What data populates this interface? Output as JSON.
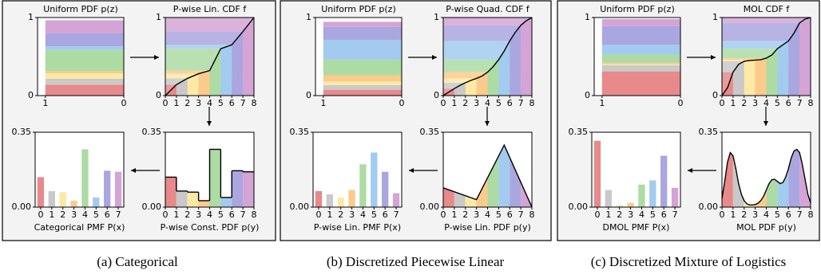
{
  "chart_data": [
    {
      "type": "band",
      "title": "Uniform PDF p(z)",
      "values": [
        0.14,
        0.075,
        0.07,
        0.03,
        0.27,
        0.045,
        0.17,
        0.165
      ],
      "colors": [
        "#e8898b",
        "#c9c9c9",
        "#fde9a6",
        "#fbcb8c",
        "#addba4",
        "#a2cbef",
        "#aaa6df",
        "#d4a4d6"
      ],
      "xlim": [
        1.1,
        0
      ],
      "xticks": [
        1,
        0
      ],
      "ylim": [
        0,
        1
      ],
      "yticks": [
        0,
        1
      ]
    },
    {
      "type": "line",
      "title": "P-wise Lin. CDF f",
      "x": [
        0,
        1,
        2,
        3,
        4,
        5,
        6,
        7,
        8
      ],
      "y": [
        0,
        0.14,
        0.22,
        0.28,
        0.32,
        0.6,
        0.65,
        0.82,
        1.0
      ],
      "color": "#000000",
      "bands": true,
      "colors": [
        "#e8898b",
        "#c9c9c9",
        "#fde9a6",
        "#fbcb8c",
        "#addba4",
        "#a2cbef",
        "#aaa6df",
        "#d4a4d6"
      ],
      "xlim": [
        0,
        8
      ],
      "xticks": [
        0,
        1,
        2,
        3,
        4,
        5,
        6,
        7,
        8
      ],
      "ylim": [
        0,
        1
      ],
      "yticks": [
        0,
        1
      ]
    },
    {
      "type": "bar",
      "xlabel": "Categorical PMF P(x)",
      "x": [
        0,
        1,
        2,
        3,
        4,
        5,
        6,
        7
      ],
      "values": [
        0.14,
        0.075,
        0.07,
        0.03,
        0.27,
        0.045,
        0.17,
        0.165
      ],
      "colors": [
        "#e8898b",
        "#c9c9c9",
        "#fde9a6",
        "#fbcb8c",
        "#addba4",
        "#a2cbef",
        "#aaa6df",
        "#d4a4d6"
      ],
      "xlim": [
        -0.5,
        7.5
      ],
      "xticks": [
        0,
        1,
        2,
        3,
        4,
        5,
        6,
        7
      ],
      "ylim": [
        0,
        0.35
      ],
      "yticks": [
        {
          "value": 0,
          "label": "0.00"
        },
        0.35
      ]
    },
    {
      "type": "step",
      "xlabel": "P-wise Const. PDF p(y)",
      "values": [
        0.14,
        0.075,
        0.07,
        0.03,
        0.27,
        0.045,
        0.17,
        0.165
      ],
      "color": "#000000",
      "colors": [
        "#e8898b",
        "#c9c9c9",
        "#fde9a6",
        "#fbcb8c",
        "#addba4",
        "#a2cbef",
        "#aaa6df",
        "#d4a4d6"
      ],
      "xlim": [
        0,
        8
      ],
      "xticks": [
        0,
        1,
        2,
        3,
        4,
        5,
        6,
        7,
        8
      ],
      "ylim": [
        0,
        0.35
      ],
      "yticks": [
        {
          "value": 0,
          "label": "0.00"
        },
        0.35
      ]
    },
    {
      "type": "band",
      "title": "Uniform PDF p(z)",
      "values": [
        0.075,
        0.06,
        0.045,
        0.08,
        0.2,
        0.255,
        0.165,
        0.065
      ],
      "colors": [
        "#e8898b",
        "#c9c9c9",
        "#fde9a6",
        "#fbcb8c",
        "#addba4",
        "#a2cbef",
        "#aaa6df",
        "#d4a4d6"
      ],
      "xlim": [
        1.1,
        0
      ],
      "xticks": [
        1,
        0
      ],
      "ylim": [
        0,
        1
      ],
      "yticks": [
        0,
        1
      ]
    },
    {
      "type": "line",
      "title": "P-wise Quad. CDF f",
      "x": [
        0,
        0.5,
        1,
        1.5,
        2,
        2.5,
        3,
        3.5,
        4,
        4.5,
        5,
        5.5,
        6,
        6.5,
        7,
        7.5,
        8
      ],
      "y": [
        0,
        0.045,
        0.09,
        0.13,
        0.165,
        0.195,
        0.22,
        0.25,
        0.3,
        0.37,
        0.46,
        0.57,
        0.7,
        0.81,
        0.9,
        0.96,
        1.0
      ],
      "color": "#000000",
      "bands": true,
      "colors": [
        "#e8898b",
        "#c9c9c9",
        "#fde9a6",
        "#fbcb8c",
        "#addba4",
        "#a2cbef",
        "#aaa6df",
        "#d4a4d6"
      ],
      "xlim": [
        0,
        8
      ],
      "xticks": [
        0,
        1,
        2,
        3,
        4,
        5,
        6,
        7,
        8
      ],
      "ylim": [
        0,
        1
      ],
      "yticks": [
        0,
        1
      ]
    },
    {
      "type": "bar",
      "xlabel": "P-wise Lin. PMF P(x)",
      "x": [
        0,
        1,
        2,
        3,
        4,
        5,
        6,
        7
      ],
      "values": [
        0.075,
        0.06,
        0.045,
        0.08,
        0.2,
        0.255,
        0.165,
        0.065
      ],
      "colors": [
        "#e8898b",
        "#c9c9c9",
        "#fde9a6",
        "#fbcb8c",
        "#addba4",
        "#a2cbef",
        "#aaa6df",
        "#d4a4d6"
      ],
      "xlim": [
        -0.5,
        7.5
      ],
      "xticks": [
        0,
        1,
        2,
        3,
        4,
        5,
        6,
        7
      ],
      "ylim": [
        0,
        0.35
      ],
      "yticks": [
        {
          "value": 0,
          "label": "0.00"
        },
        0.35
      ]
    },
    {
      "type": "line",
      "xlabel": "P-wise Lin. PDF p(y)",
      "x": [
        0,
        3,
        5.5,
        8
      ],
      "y": [
        0.09,
        0.035,
        0.29,
        0
      ],
      "color": "#000000",
      "bands": false,
      "colors": [
        "#e8898b",
        "#c9c9c9",
        "#fde9a6",
        "#fbcb8c",
        "#addba4",
        "#a2cbef",
        "#aaa6df",
        "#d4a4d6"
      ],
      "xlim": [
        0,
        8
      ],
      "xticks": [
        0,
        1,
        2,
        3,
        4,
        5,
        6,
        7,
        8
      ],
      "ylim": [
        0,
        0.35
      ],
      "yticks": [
        {
          "value": 0,
          "label": "0.00"
        },
        0.35
      ]
    },
    {
      "type": "band",
      "title": "Uniform PDF p(z)",
      "values": [
        0.31,
        0.08,
        0.01,
        0.02,
        0.105,
        0.125,
        0.24,
        0.09
      ],
      "colors": [
        "#e8898b",
        "#c9c9c9",
        "#fde9a6",
        "#fbcb8c",
        "#addba4",
        "#a2cbef",
        "#aaa6df",
        "#d4a4d6"
      ],
      "xlim": [
        1.1,
        0
      ],
      "xticks": [
        1,
        0
      ],
      "ylim": [
        0,
        1
      ],
      "yticks": [
        0,
        1
      ]
    },
    {
      "type": "line",
      "title": "MOL CDF f",
      "x": [
        0,
        0.5,
        1,
        1.5,
        2,
        2.5,
        3,
        3.5,
        4,
        4.5,
        5,
        5.5,
        6,
        6.5,
        7,
        7.5,
        8
      ],
      "y": [
        0,
        0.1,
        0.3,
        0.4,
        0.44,
        0.45,
        0.455,
        0.46,
        0.48,
        0.52,
        0.6,
        0.65,
        0.7,
        0.8,
        0.93,
        0.98,
        1.0
      ],
      "color": "#000000",
      "bands": true,
      "colors": [
        "#e8898b",
        "#c9c9c9",
        "#fde9a6",
        "#fbcb8c",
        "#addba4",
        "#a2cbef",
        "#aaa6df",
        "#d4a4d6"
      ],
      "xlim": [
        0,
        8
      ],
      "xticks": [
        0,
        1,
        2,
        3,
        4,
        5,
        6,
        7,
        8
      ],
      "ylim": [
        0,
        1
      ],
      "yticks": [
        0,
        1
      ]
    },
    {
      "type": "bar",
      "xlabel": "DMOL PMF P(x)",
      "x": [
        0,
        1,
        2,
        3,
        4,
        5,
        6,
        7
      ],
      "values": [
        0.31,
        0.08,
        0.01,
        0.02,
        0.105,
        0.125,
        0.24,
        0.09
      ],
      "colors": [
        "#e8898b",
        "#c9c9c9",
        "#fde9a6",
        "#fbcb8c",
        "#addba4",
        "#a2cbef",
        "#aaa6df",
        "#d4a4d6"
      ],
      "xlim": [
        -0.5,
        7.5
      ],
      "xticks": [
        0,
        1,
        2,
        3,
        4,
        5,
        6,
        7
      ],
      "ylim": [
        0,
        0.35
      ],
      "yticks": [
        {
          "value": 0,
          "label": "0.00"
        },
        0.35
      ]
    },
    {
      "type": "line",
      "xlabel": "MOL PDF p(y)",
      "x": [
        0,
        0.25,
        0.5,
        0.75,
        1,
        1.25,
        1.5,
        1.75,
        2,
        2.25,
        2.5,
        2.75,
        3,
        3.25,
        3.5,
        3.75,
        4,
        4.25,
        4.5,
        4.75,
        5,
        5.25,
        5.5,
        5.75,
        6,
        6.25,
        6.5,
        6.75,
        7,
        7.25,
        7.5,
        7.75,
        8
      ],
      "y": [
        0.04,
        0.12,
        0.21,
        0.255,
        0.24,
        0.18,
        0.11,
        0.06,
        0.03,
        0.015,
        0.01,
        0.01,
        0.012,
        0.018,
        0.03,
        0.05,
        0.08,
        0.11,
        0.128,
        0.13,
        0.12,
        0.11,
        0.115,
        0.14,
        0.18,
        0.23,
        0.262,
        0.27,
        0.255,
        0.2,
        0.13,
        0.06,
        0.02
      ],
      "color": "#000000",
      "bands": false,
      "colors": [
        "#e8898b",
        "#c9c9c9",
        "#fde9a6",
        "#fbcb8c",
        "#addba4",
        "#a2cbef",
        "#aaa6df",
        "#d4a4d6"
      ],
      "xlim": [
        0,
        8
      ],
      "xticks": [
        0,
        1,
        2,
        3,
        4,
        5,
        6,
        7,
        8
      ],
      "ylim": [
        0,
        0.35
      ],
      "yticks": [
        {
          "value": 0,
          "label": "0.00"
        },
        0.35
      ]
    }
  ],
  "captions": [
    "(a) Categorical",
    "(b) Discretized Piecewise Linear",
    "(c) Discretized Mixture of Logistics"
  ]
}
